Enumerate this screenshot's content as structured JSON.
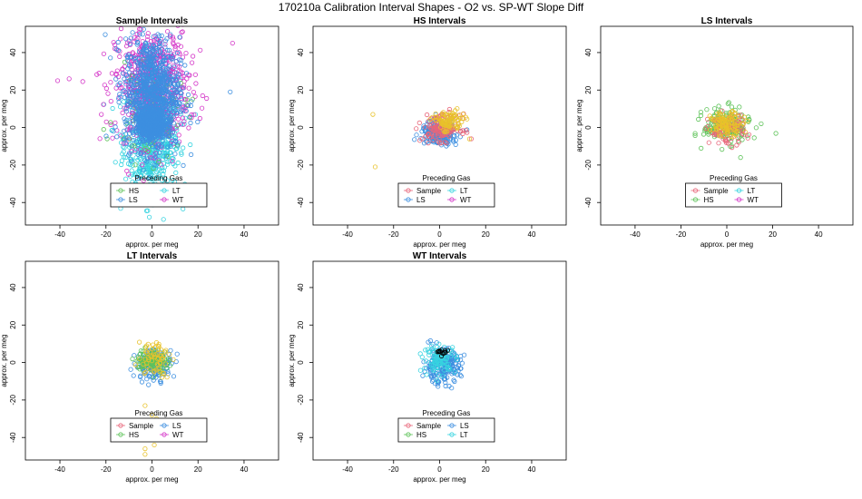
{
  "figure": {
    "title": "170210a   Calibration Interval Shapes - O2 vs. SP-WT Slope Diff"
  },
  "colors": {
    "Sample": "#e8667a",
    "HS": "#5fc35a",
    "LS": "#3d8fe0",
    "LT": "#36d3e0",
    "WT": "#d437c8",
    "yellow": "#e8c22a",
    "black": "#000000"
  },
  "legend_title": "Preceding Gas",
  "chart_data": [
    {
      "type": "scatter",
      "title": "Sample Intervals",
      "xlabel": "approx. per meg",
      "ylabel": "approx. per meg",
      "xticks": [
        -40,
        -20,
        0,
        20,
        40
      ],
      "yticks": [
        -40,
        -20,
        0,
        20,
        40
      ],
      "xlim": [
        -55,
        55
      ],
      "ylim": [
        -52,
        54
      ],
      "legend": {
        "placement": "bottom-center",
        "entries": [
          "HS",
          "LT",
          "LS",
          "WT"
        ],
        "keys": [
          "HS",
          "LT",
          "LS",
          "WT"
        ]
      },
      "series": [
        {
          "key": "LT",
          "n": 700,
          "cx": 0,
          "cy": -5,
          "sx": 6,
          "sy": 15
        },
        {
          "key": "WT",
          "n": 650,
          "cx": 0,
          "cy": 22,
          "sx": 8,
          "sy": 16
        },
        {
          "key": "HS",
          "n": 60,
          "cx": 0,
          "cy": 5,
          "sx": 8,
          "sy": 12
        },
        {
          "key": "LS",
          "n": 900,
          "cx": 0,
          "cy": 18,
          "sx": 6,
          "sy": 15
        },
        {
          "key": "LS",
          "n": 500,
          "cx": 0,
          "cy": 2,
          "sx": 3,
          "sy": 4
        }
      ],
      "outliers": [
        {
          "key": "WT",
          "x": -41,
          "y": 25
        },
        {
          "key": "WT",
          "x": -36,
          "y": 26
        },
        {
          "key": "WT",
          "x": -23,
          "y": 29
        },
        {
          "key": "WT",
          "x": 35,
          "y": 45
        },
        {
          "key": "LS",
          "x": 34,
          "y": 19
        },
        {
          "key": "LT",
          "x": 5,
          "y": -49
        },
        {
          "key": "WT",
          "x": -22,
          "y": 7
        },
        {
          "key": "HS",
          "x": -21,
          "y": -1
        }
      ]
    },
    {
      "type": "scatter",
      "title": "HS Intervals",
      "xlabel": "approx. per meg",
      "ylabel": "approx. per meg",
      "xticks": [
        -40,
        -20,
        0,
        20,
        40
      ],
      "yticks": [
        -40,
        -20,
        0,
        20,
        40
      ],
      "xlim": [
        -55,
        55
      ],
      "ylim": [
        -52,
        54
      ],
      "legend": {
        "placement": "bottom-center",
        "entries": [
          "Sample",
          "LT",
          "LS",
          "WT"
        ],
        "keys": [
          "Sample",
          "LT",
          "LS",
          "WT"
        ]
      },
      "series": [
        {
          "key": "LS",
          "n": 220,
          "cx": 0,
          "cy": -3,
          "sx": 4,
          "sy": 3
        },
        {
          "key": "Sample",
          "n": 150,
          "cx": 1,
          "cy": 0,
          "sx": 4,
          "sy": 3.5
        },
        {
          "key": "yellow",
          "n": 90,
          "cx": 4,
          "cy": 3,
          "sx": 3.5,
          "sy": 3
        }
      ],
      "outliers": [
        {
          "key": "yellow",
          "x": -29,
          "y": 7
        },
        {
          "key": "yellow",
          "x": -28,
          "y": -21
        }
      ]
    },
    {
      "type": "scatter",
      "title": "LS Intervals",
      "xlabel": "approx. per meg",
      "ylabel": "approx. per meg",
      "xticks": [
        -40,
        -20,
        0,
        20,
        40
      ],
      "yticks": [
        -40,
        -20,
        0,
        20,
        40
      ],
      "xlim": [
        -55,
        55
      ],
      "ylim": [
        -52,
        54
      ],
      "legend": {
        "placement": "bottom-center",
        "entries": [
          "Sample",
          "LT",
          "HS",
          "WT"
        ],
        "keys": [
          "Sample",
          "LT",
          "HS",
          "WT"
        ]
      },
      "series": [
        {
          "key": "HS",
          "n": 200,
          "cx": 0,
          "cy": 1,
          "sx": 5,
          "sy": 4.5
        },
        {
          "key": "Sample",
          "n": 90,
          "cx": 0,
          "cy": -1,
          "sx": 4,
          "sy": 4
        },
        {
          "key": "yellow",
          "n": 110,
          "cx": 0,
          "cy": 2,
          "sx": 3.5,
          "sy": 3
        }
      ],
      "outliers": [
        {
          "key": "HS",
          "x": 6,
          "y": -16
        },
        {
          "key": "HS",
          "x": 15,
          "y": 2
        }
      ]
    },
    {
      "type": "scatter",
      "title": "LT Intervals",
      "xlabel": "approx. per meg",
      "ylabel": "approx. per meg",
      "xticks": [
        -40,
        -20,
        0,
        20,
        40
      ],
      "yticks": [
        -40,
        -20,
        0,
        20,
        40
      ],
      "xlim": [
        -55,
        55
      ],
      "ylim": [
        -52,
        54
      ],
      "legend": {
        "placement": "bottom-center",
        "entries": [
          "Sample",
          "LS",
          "HS",
          "WT"
        ],
        "keys": [
          "Sample",
          "LS",
          "HS",
          "WT"
        ]
      },
      "series": [
        {
          "key": "LS",
          "n": 150,
          "cx": 1,
          "cy": -1,
          "sx": 4,
          "sy": 4
        },
        {
          "key": "HS",
          "n": 120,
          "cx": 0,
          "cy": 1,
          "sx": 3.5,
          "sy": 3
        },
        {
          "key": "yellow",
          "n": 60,
          "cx": 1,
          "cy": 3,
          "sx": 3.5,
          "sy": 5
        }
      ],
      "outliers": [
        {
          "key": "yellow",
          "x": -3,
          "y": -23
        },
        {
          "key": "yellow",
          "x": 0,
          "y": -28
        },
        {
          "key": "yellow",
          "x": -2,
          "y": -36
        },
        {
          "key": "yellow",
          "x": -1,
          "y": -39
        },
        {
          "key": "yellow",
          "x": -3,
          "y": -46
        },
        {
          "key": "yellow",
          "x": -3,
          "y": -49
        },
        {
          "key": "yellow",
          "x": 1,
          "y": -44
        },
        {
          "key": "yellow",
          "x": 2,
          "y": -30
        },
        {
          "key": "LS",
          "x": -8,
          "y": -7
        }
      ]
    },
    {
      "type": "scatter",
      "title": "WT Intervals",
      "xlabel": "approx. per meg",
      "ylabel": "approx. per meg",
      "xticks": [
        -40,
        -20,
        0,
        20,
        40
      ],
      "yticks": [
        -40,
        -20,
        0,
        20,
        40
      ],
      "xlim": [
        -55,
        55
      ],
      "ylim": [
        -52,
        54
      ],
      "legend": {
        "placement": "bottom-center",
        "entries": [
          "Sample",
          "LS",
          "HS",
          "LT"
        ],
        "keys": [
          "Sample",
          "LS",
          "HS",
          "LT"
        ]
      },
      "series": [
        {
          "key": "LS",
          "n": 220,
          "cx": 1,
          "cy": -2,
          "sx": 4,
          "sy": 4.5
        },
        {
          "key": "LT",
          "n": 100,
          "cx": 0,
          "cy": 2,
          "sx": 3.5,
          "sy": 3.5
        },
        {
          "key": "black",
          "n": 12,
          "cx": 1,
          "cy": 5,
          "sx": 2,
          "sy": 1.5
        }
      ],
      "outliers": []
    }
  ]
}
